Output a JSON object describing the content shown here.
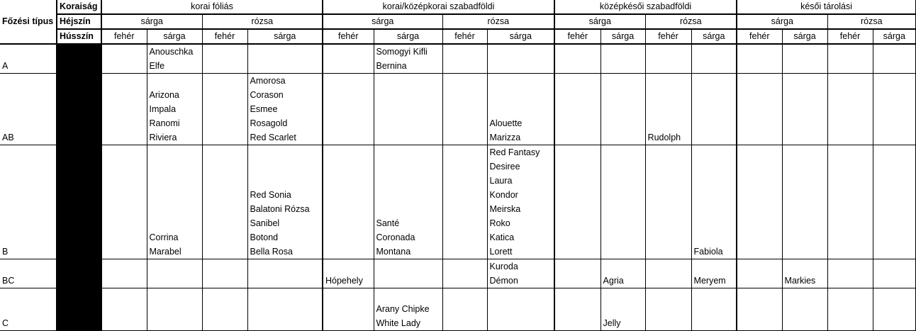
{
  "header": {
    "corner_label": "Főzési típus",
    "row_labels": [
      "Koraiság",
      "Héjszín",
      "Hússzín"
    ],
    "earliness_groups": [
      "korai fóliás",
      "korai/középkorai szabadföldi",
      "középkésői szabadföldi",
      "késői tárolási"
    ],
    "skin_colors": [
      "sárga",
      "rózsa",
      "sárga",
      "rózsa",
      "sárga",
      "rózsa",
      "sárga",
      "rózsa"
    ],
    "flesh_colors": [
      "fehér",
      "sárga",
      "fehér",
      "sárga",
      "fehér",
      "sárga",
      "fehér",
      "sárga",
      "fehér",
      "sárga",
      "fehér",
      "sárga",
      "fehér",
      "sárga",
      "fehér",
      "sárga"
    ]
  },
  "rows": [
    {
      "type": "A",
      "cells": [
        [],
        [
          "Anouschka",
          "Elfe"
        ],
        [],
        [],
        [],
        [
          "Somogyi Kifli",
          "Bernina"
        ],
        [],
        [],
        [],
        [],
        [],
        [],
        [],
        [],
        [],
        []
      ]
    },
    {
      "type": "AB",
      "cells": [
        [],
        [
          "Arizona",
          "Impala",
          "Ranomi",
          "Riviera"
        ],
        [],
        [
          "Amorosa",
          "Corason",
          "Esmee",
          "Rosagold",
          "Red Scarlet"
        ],
        [],
        [],
        [],
        [
          "Alouette",
          "Marizza"
        ],
        [],
        [],
        [
          "Rudolph"
        ],
        [],
        [],
        [],
        [],
        []
      ]
    },
    {
      "type": "B",
      "cells": [
        [],
        [
          "Corrina",
          "Marabel"
        ],
        [],
        [
          "Red Sonia",
          "Balatoni Rózsa",
          "Sanibel",
          "Botond",
          "Bella Rosa"
        ],
        [],
        [
          "Santé",
          "Coronada",
          "Montana"
        ],
        [],
        [
          "Red Fantasy",
          "Desiree",
          "Laura",
          "Kondor",
          "Meirska",
          "Roko",
          "Katica",
          "Lorett"
        ],
        [],
        [],
        [],
        [
          "Fabiola"
        ],
        [],
        [],
        [],
        []
      ]
    },
    {
      "type": "BC",
      "cells": [
        [],
        [],
        [],
        [],
        [
          "Hópehely"
        ],
        [],
        [],
        [
          "Kuroda",
          "Démon"
        ],
        [],
        [
          "Agria"
        ],
        [],
        [
          "Meryem"
        ],
        [],
        [
          "Markies"
        ],
        [],
        []
      ]
    },
    {
      "type": "C",
      "cells": [
        [],
        [],
        [],
        [],
        [],
        [
          "Arany Chipke",
          "White Lady"
        ],
        [],
        [],
        [],
        [
          "Jelly"
        ],
        [],
        [],
        [],
        [],
        [],
        []
      ]
    }
  ]
}
